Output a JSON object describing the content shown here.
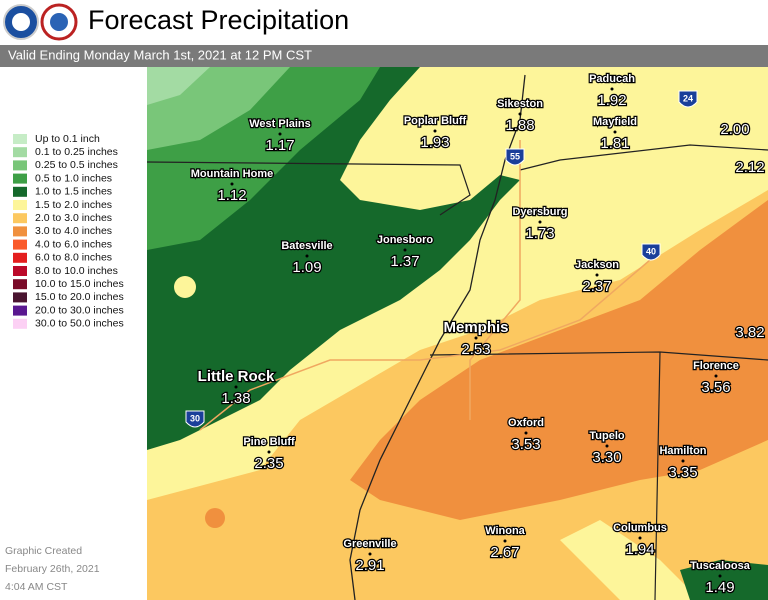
{
  "header": {
    "title": "Forecast Precipitation",
    "subtitle": "Valid Ending Monday March 1st, 2021 at 12 PM CST"
  },
  "legend": [
    {
      "label": "Up to 0.1 inch",
      "color": "#c6ecc6"
    },
    {
      "label": "0.1 to 0.25 inches",
      "color": "#a3dba3"
    },
    {
      "label": "0.25 to 0.5 inches",
      "color": "#79c679"
    },
    {
      "label": "0.5 to 1.0 inches",
      "color": "#3e9f46"
    },
    {
      "label": "1.0 to 1.5 inches",
      "color": "#15692b"
    },
    {
      "label": "1.5 to 2.0 inches",
      "color": "#fdf59a"
    },
    {
      "label": "2.0 to 3.0 inches",
      "color": "#fcc860"
    },
    {
      "label": "3.0 to 4.0 inches",
      "color": "#f0903e"
    },
    {
      "label": "4.0 to 6.0 inches",
      "color": "#fa5a2a"
    },
    {
      "label": "6.0 to 8.0 inches",
      "color": "#e41e1e"
    },
    {
      "label": "8.0 to 10.0 inches",
      "color": "#bb0a2a"
    },
    {
      "label": "10.0 to 15.0 inches",
      "color": "#7a0a28"
    },
    {
      "label": "15.0 to 20.0 inches",
      "color": "#4a1430"
    },
    {
      "label": "20.0 to 30.0 inches",
      "color": "#5a1890"
    },
    {
      "label": "30.0 to 50.0 inches",
      "color": "#fcd0f4"
    }
  ],
  "cities": [
    {
      "name": "West Plains",
      "value": "1.17"
    },
    {
      "name": "Poplar Bluff",
      "value": "1.93"
    },
    {
      "name": "Sikeston",
      "value": "1.88"
    },
    {
      "name": "Paducah",
      "value": "1.92"
    },
    {
      "name": "Mayfield",
      "value": "1.81"
    },
    {
      "name": "Mountain Home",
      "value": "1.12"
    },
    {
      "name": "Dyersburg",
      "value": "1.73"
    },
    {
      "name": "Batesville",
      "value": "1.09"
    },
    {
      "name": "Jonesboro",
      "value": "1.37"
    },
    {
      "name": "Jackson",
      "value": "2.37"
    },
    {
      "name": "Memphis",
      "value": "2.53"
    },
    {
      "name": "Little Rock",
      "value": "1.38"
    },
    {
      "name": "Florence",
      "value": "3.56"
    },
    {
      "name": "Oxford",
      "value": "3.53"
    },
    {
      "name": "Tupelo",
      "value": "3.30"
    },
    {
      "name": "Hamilton",
      "value": "3.35"
    },
    {
      "name": "Pine Bluff",
      "value": "2.35"
    },
    {
      "name": "Winona",
      "value": "2.67"
    },
    {
      "name": "Columbus",
      "value": "1.94"
    },
    {
      "name": "Greenville",
      "value": "2.91"
    },
    {
      "name": "Tuscaloosa",
      "value": "1.49"
    }
  ],
  "unnamed_values": [
    "2.00",
    "2.12",
    "3.82"
  ],
  "interstates": [
    "24",
    "55",
    "40",
    "30"
  ],
  "credit": [
    "Graphic Created",
    "February 26th, 2021",
    "4:04 AM CST"
  ]
}
